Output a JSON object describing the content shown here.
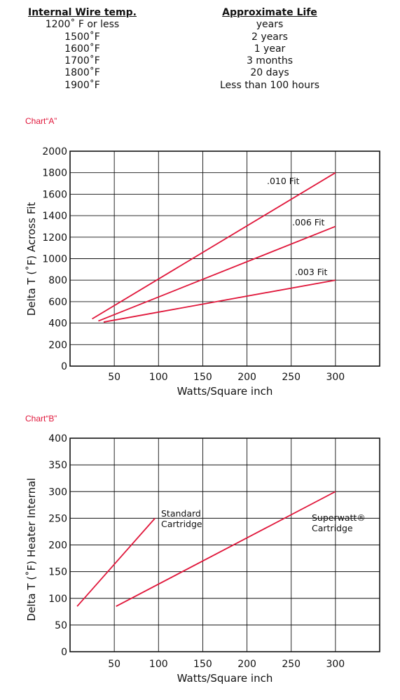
{
  "life_table": {
    "header_temp": "Internal Wire temp.",
    "header_life": "Approximate Life",
    "rows": [
      {
        "temp": "1200˚ F or less",
        "life": "years"
      },
      {
        "temp": "1500˚F",
        "life": "2 years"
      },
      {
        "temp": "1600˚F",
        "life": "1 year"
      },
      {
        "temp": "1700˚F",
        "life": "3 months"
      },
      {
        "temp": "1800˚F",
        "life": "20 days"
      },
      {
        "temp": "1900˚F",
        "life": "Less than 100 hours"
      }
    ]
  },
  "chart_data": [
    {
      "label": "Chart“A”",
      "type": "line",
      "xlabel": "Watts/Square inch",
      "ylabel": "Delta T (˚F) Across Fit",
      "xlim": [
        0,
        350
      ],
      "ylim": [
        0,
        2000
      ],
      "xticks": [
        50,
        100,
        150,
        200,
        250,
        300
      ],
      "yticks": [
        0,
        200,
        400,
        600,
        800,
        1000,
        1200,
        1400,
        1600,
        1800,
        2000
      ],
      "grid": true,
      "line_color": "#e0163a",
      "series": [
        {
          "name": ".010 Fit",
          "points": [
            [
              25,
              440
            ],
            [
              300,
              1800
            ]
          ]
        },
        {
          "name": ".006 Fit",
          "points": [
            [
              32,
              420
            ],
            [
              300,
              1300
            ]
          ]
        },
        {
          "name": ".003 Fit",
          "points": [
            [
              38,
              410
            ],
            [
              300,
              800
            ]
          ]
        }
      ]
    },
    {
      "label": "Chart“B”",
      "type": "line",
      "xlabel": "Watts/Square inch",
      "ylabel": "Delta T (˚F) Heater Internal",
      "xlim": [
        0,
        350
      ],
      "ylim": [
        0,
        400
      ],
      "xticks": [
        50,
        100,
        150,
        200,
        250,
        300
      ],
      "yticks": [
        0,
        50,
        100,
        150,
        200,
        250,
        300,
        350,
        400
      ],
      "grid": true,
      "line_color": "#e0163a",
      "series": [
        {
          "name": "Standard Cartridge",
          "label_lines": [
            "Standard",
            "Cartridge"
          ],
          "points": [
            [
              8,
              85
            ],
            [
              96,
              250
            ]
          ]
        },
        {
          "name": "Superwatt® Cartridge",
          "label_lines": [
            "Superwatt®",
            "Cartridge"
          ],
          "points": [
            [
              52,
              85
            ],
            [
              300,
              300
            ]
          ]
        }
      ]
    }
  ]
}
